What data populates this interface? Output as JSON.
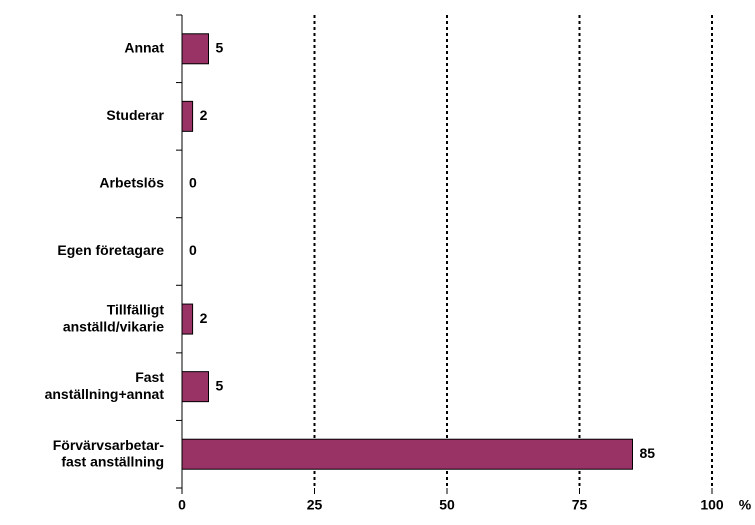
{
  "chart_data": {
    "type": "barh",
    "categories": [
      "Annat",
      "Studerar",
      "Arbetslös",
      "Egen företagare",
      "Tillfälligt\nanställd/vikarie",
      "Fast\nanställning+annat",
      "Förvärvsarbetar-\nfast anställning"
    ],
    "values": [
      5,
      2,
      0,
      0,
      2,
      5,
      85
    ],
    "color": "#993366",
    "xlabel": "%",
    "xlim": [
      0,
      100
    ],
    "xticks": [
      0,
      25,
      50,
      75,
      100
    ],
    "grid": true
  }
}
